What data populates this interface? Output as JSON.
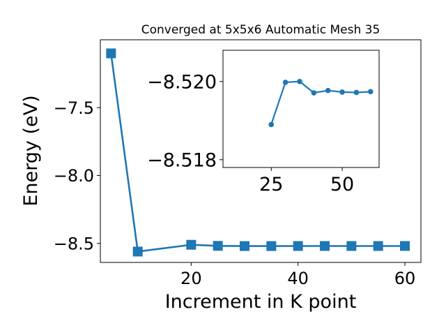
{
  "chart_data": [
    {
      "type": "line",
      "title": "Converged at 5x5x6 Automatic Mesh 35",
      "xlabel": "Increment in K point",
      "ylabel": "Energy (eV)",
      "xlim": [
        3,
        63
      ],
      "ylim": [
        -8.64,
        -7.0
      ],
      "x_ticks": [
        20,
        40,
        60
      ],
      "y_ticks": [
        -7.5,
        -8.0,
        -8.5
      ],
      "x_tick_labels": [
        "20",
        "40",
        "60"
      ],
      "y_tick_labels": [
        "−7.5",
        "−8.0",
        "−8.5"
      ],
      "marker": "square",
      "color": "#1f77b4",
      "series": [
        {
          "x": [
            5,
            10,
            20,
            25,
            30,
            35,
            40,
            45,
            50,
            55,
            60
          ],
          "y": [
            -7.1,
            -8.56,
            -8.51,
            -8.518,
            -8.5195,
            -8.5195,
            -8.519,
            -8.519,
            -8.519,
            -8.519,
            -8.519
          ]
        }
      ]
    },
    {
      "type": "line",
      "title": "",
      "xlabel": "",
      "ylabel": "",
      "xlim": [
        8,
        63
      ],
      "ylim": [
        -8.5178,
        -8.5208
      ],
      "x_ticks": [
        25,
        50
      ],
      "y_ticks": [
        -8.52,
        -8.518
      ],
      "x_tick_labels": [
        "25",
        "50"
      ],
      "y_tick_labels": [
        "−8.520",
        "−8.518"
      ],
      "marker": "circle",
      "color": "#1f77b4",
      "series": [
        {
          "x": [
            25,
            30,
            35,
            40,
            45,
            50,
            55,
            60
          ],
          "y": [
            -8.5189,
            -8.51998,
            -8.52,
            -8.51971,
            -8.51977,
            -8.51973,
            -8.51972,
            -8.51974
          ]
        }
      ]
    }
  ]
}
